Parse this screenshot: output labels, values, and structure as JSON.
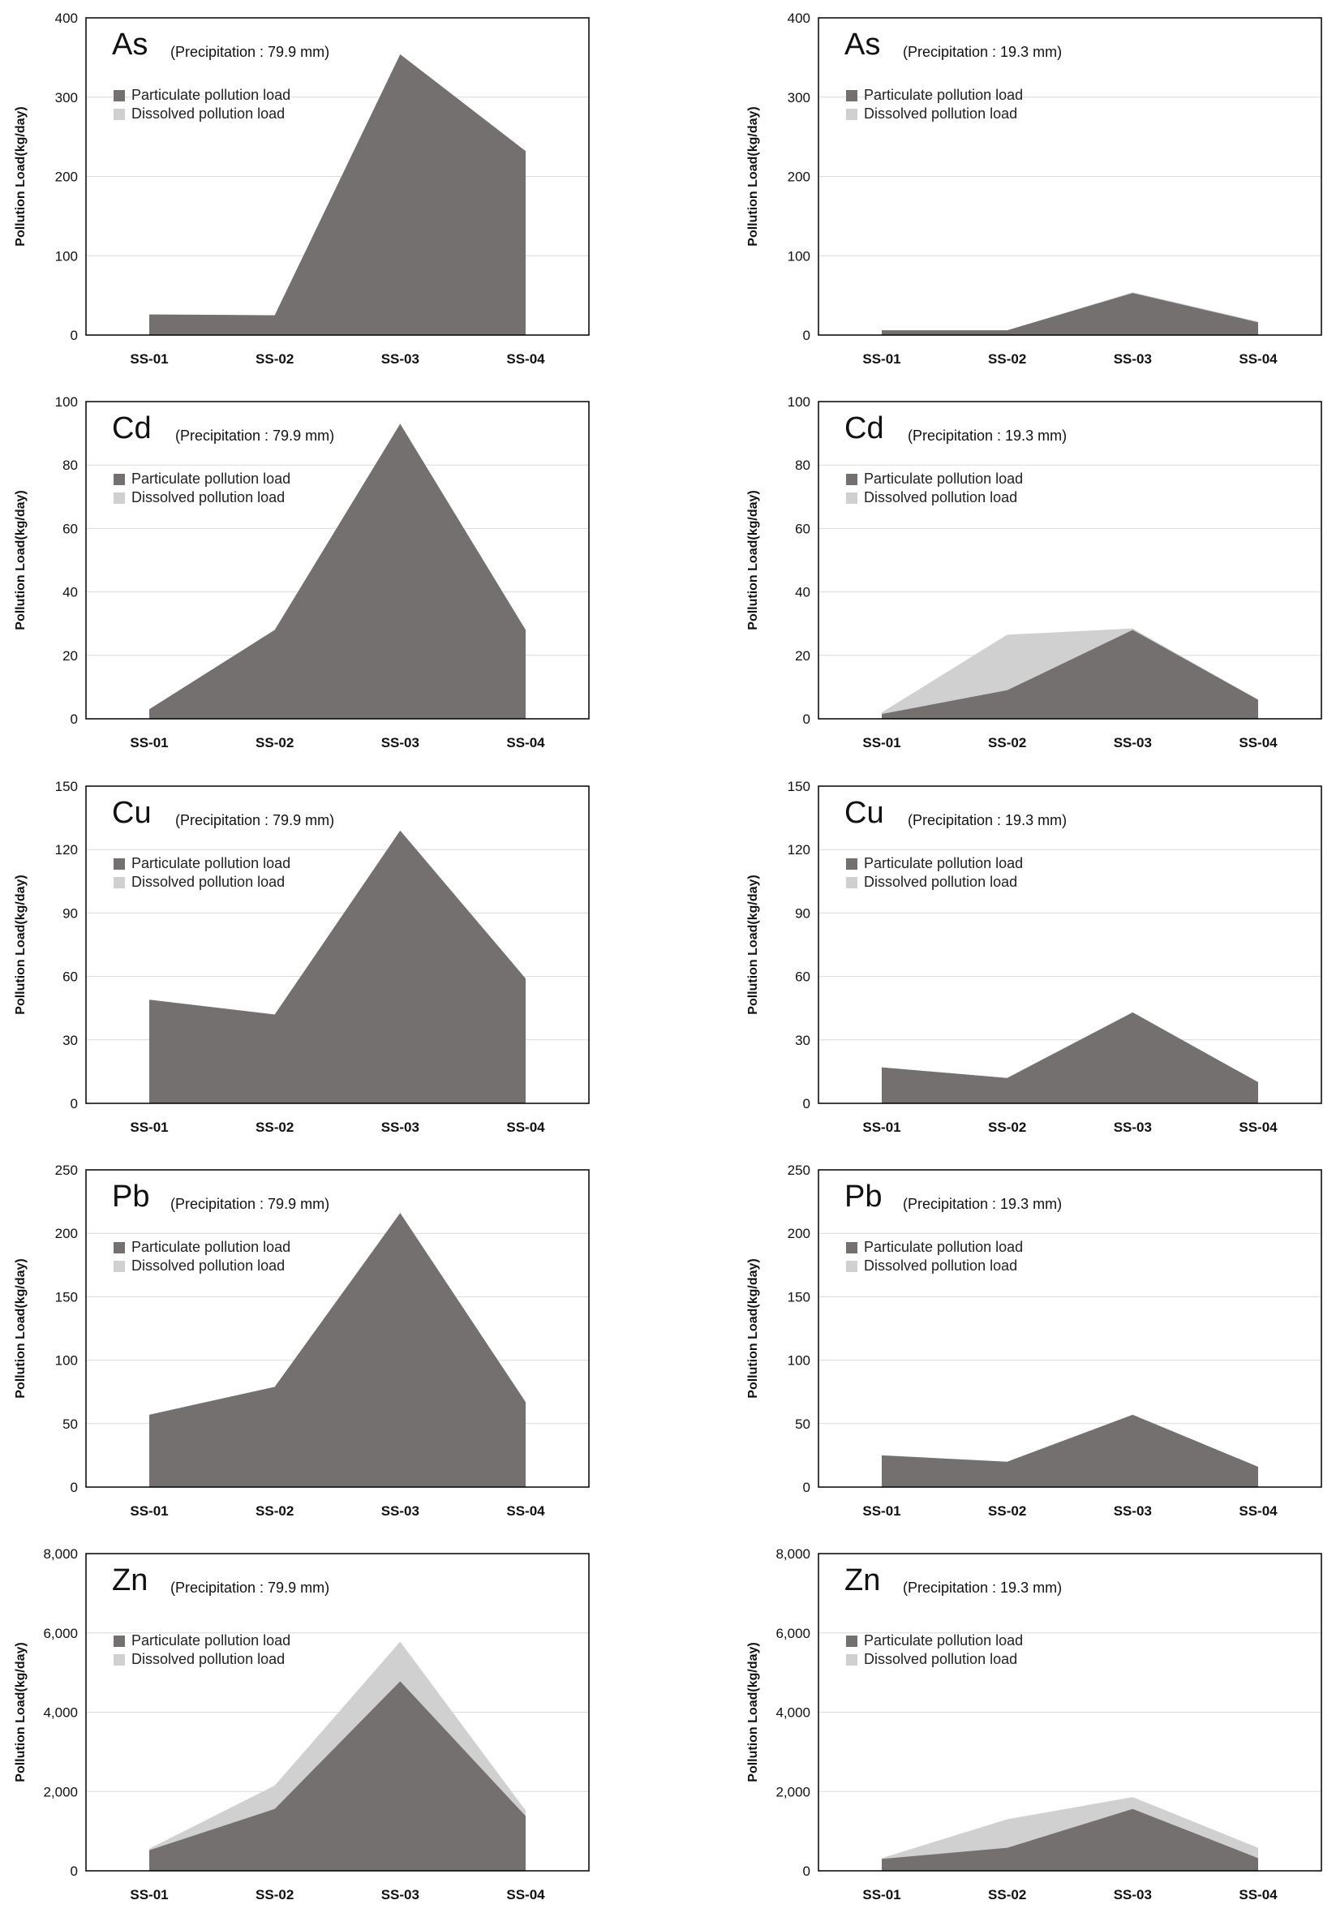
{
  "colors": {
    "particulate": "#757070",
    "dissolved": "#d0d0d0",
    "grid": "#d9d9d9",
    "axis": "#000000"
  },
  "legend": {
    "particulate": "Particulate pollution load",
    "dissolved": "Dissolved pollution load"
  },
  "chart_data": [
    {
      "type": "area",
      "element": "As",
      "precipitation": "(Precipitation : 79.9 mm)",
      "ylabel": "Pollution Load(kg/day)",
      "categories": [
        "SS-01",
        "SS-02",
        "SS-03",
        "SS-04"
      ],
      "ylim": [
        0,
        400
      ],
      "yticks": [
        "0",
        "100",
        "200",
        "300",
        "400"
      ],
      "series": [
        {
          "name": "Particulate pollution load",
          "values": [
            26,
            25,
            354,
            232
          ]
        },
        {
          "name": "Dissolved pollution load",
          "values": [
            26,
            25,
            354,
            232
          ]
        }
      ]
    },
    {
      "type": "area",
      "element": "As",
      "precipitation": "(Precipitation : 19.3 mm)",
      "ylabel": "Pollution Load(kg/day)",
      "categories": [
        "SS-01",
        "SS-02",
        "SS-03",
        "SS-04"
      ],
      "ylim": [
        0,
        400
      ],
      "yticks": [
        "0",
        "100",
        "200",
        "300",
        "400"
      ],
      "series": [
        {
          "name": "Particulate pollution load",
          "values": [
            6,
            6,
            53,
            16
          ]
        },
        {
          "name": "Dissolved pollution load",
          "values": [
            6,
            6,
            54,
            17
          ]
        }
      ]
    },
    {
      "type": "area",
      "element": "Cd",
      "precipitation": "(Precipitation : 79.9 mm)",
      "ylabel": "Pollution Load(kg/day)",
      "categories": [
        "SS-01",
        "SS-02",
        "SS-03",
        "SS-04"
      ],
      "ylim": [
        0,
        100
      ],
      "yticks": [
        "0",
        "20",
        "40",
        "60",
        "80",
        "100"
      ],
      "series": [
        {
          "name": "Particulate pollution load",
          "values": [
            3,
            28,
            93,
            28
          ]
        },
        {
          "name": "Dissolved pollution load",
          "values": [
            3,
            28,
            93,
            28
          ]
        }
      ]
    },
    {
      "type": "area",
      "element": "Cd",
      "precipitation": "(Precipitation : 19.3 mm)",
      "ylabel": "Pollution Load(kg/day)",
      "categories": [
        "SS-01",
        "SS-02",
        "SS-03",
        "SS-04"
      ],
      "ylim": [
        0,
        100
      ],
      "yticks": [
        "0",
        "20",
        "40",
        "60",
        "80",
        "100"
      ],
      "series": [
        {
          "name": "Particulate pollution load",
          "values": [
            1.5,
            9,
            28,
            6
          ]
        },
        {
          "name": "Dissolved pollution load",
          "values": [
            2,
            26.5,
            28.5,
            6
          ]
        }
      ]
    },
    {
      "type": "area",
      "element": "Cu",
      "precipitation": "(Precipitation : 79.9 mm)",
      "ylabel": "Pollution Load(kg/day)",
      "categories": [
        "SS-01",
        "SS-02",
        "SS-03",
        "SS-04"
      ],
      "ylim": [
        0,
        150
      ],
      "yticks": [
        "0",
        "30",
        "60",
        "90",
        "120",
        "150"
      ],
      "series": [
        {
          "name": "Particulate pollution load",
          "values": [
            49,
            42,
            129,
            59
          ]
        },
        {
          "name": "Dissolved pollution load",
          "values": [
            49,
            42,
            129,
            59
          ]
        }
      ]
    },
    {
      "type": "area",
      "element": "Cu",
      "precipitation": "(Precipitation : 19.3 mm)",
      "ylabel": "Pollution Load(kg/day)",
      "categories": [
        "SS-01",
        "SS-02",
        "SS-03",
        "SS-04"
      ],
      "ylim": [
        0,
        150
      ],
      "yticks": [
        "0",
        "30",
        "60",
        "90",
        "120",
        "150"
      ],
      "series": [
        {
          "name": "Particulate pollution load",
          "values": [
            17,
            12,
            43,
            10
          ]
        },
        {
          "name": "Dissolved pollution load",
          "values": [
            17,
            12,
            43,
            10
          ]
        }
      ]
    },
    {
      "type": "area",
      "element": "Pb",
      "precipitation": "(Precipitation : 79.9 mm)",
      "ylabel": "Pollution Load(kg/day)",
      "categories": [
        "SS-01",
        "SS-02",
        "SS-03",
        "SS-04"
      ],
      "ylim": [
        0,
        250
      ],
      "yticks": [
        "0",
        "50",
        "100",
        "150",
        "200",
        "250"
      ],
      "series": [
        {
          "name": "Particulate pollution load",
          "values": [
            57,
            79,
            216,
            67
          ]
        },
        {
          "name": "Dissolved pollution load",
          "values": [
            57,
            79,
            216,
            67
          ]
        }
      ]
    },
    {
      "type": "area",
      "element": "Pb",
      "precipitation": "(Precipitation : 19.3 mm)",
      "ylabel": "Pollution Load(kg/day)",
      "categories": [
        "SS-01",
        "SS-02",
        "SS-03",
        "SS-04"
      ],
      "ylim": [
        0,
        250
      ],
      "yticks": [
        "0",
        "50",
        "100",
        "150",
        "200",
        "250"
      ],
      "series": [
        {
          "name": "Particulate pollution load",
          "values": [
            25,
            20,
            57,
            16
          ]
        },
        {
          "name": "Dissolved pollution load",
          "values": [
            25,
            20,
            57,
            16
          ]
        }
      ]
    },
    {
      "type": "area",
      "element": "Zn",
      "precipitation": "(Precipitation : 79.9 mm)",
      "ylabel": "Pollution Load(kg/day)",
      "categories": [
        "SS-01",
        "SS-02",
        "SS-03",
        "SS-04"
      ],
      "ylim": [
        0,
        8000
      ],
      "yticks": [
        "0",
        "2,000",
        "4,000",
        "6,000",
        "8,000"
      ],
      "series": [
        {
          "name": "Particulate pollution load",
          "values": [
            520,
            1560,
            4780,
            1380
          ]
        },
        {
          "name": "Dissolved pollution load",
          "values": [
            560,
            2150,
            5780,
            1520
          ]
        }
      ]
    },
    {
      "type": "area",
      "element": "Zn",
      "precipitation": "(Precipitation : 19.3 mm)",
      "ylabel": "Pollution Load(kg/day)",
      "categories": [
        "SS-01",
        "SS-02",
        "SS-03",
        "SS-04"
      ],
      "ylim": [
        0,
        8000
      ],
      "yticks": [
        "0",
        "2,000",
        "4,000",
        "6,000",
        "8,000"
      ],
      "series": [
        {
          "name": "Particulate pollution load",
          "values": [
            300,
            580,
            1560,
            320
          ]
        },
        {
          "name": "Dissolved pollution load",
          "values": [
            320,
            1300,
            1860,
            580
          ]
        }
      ]
    }
  ]
}
